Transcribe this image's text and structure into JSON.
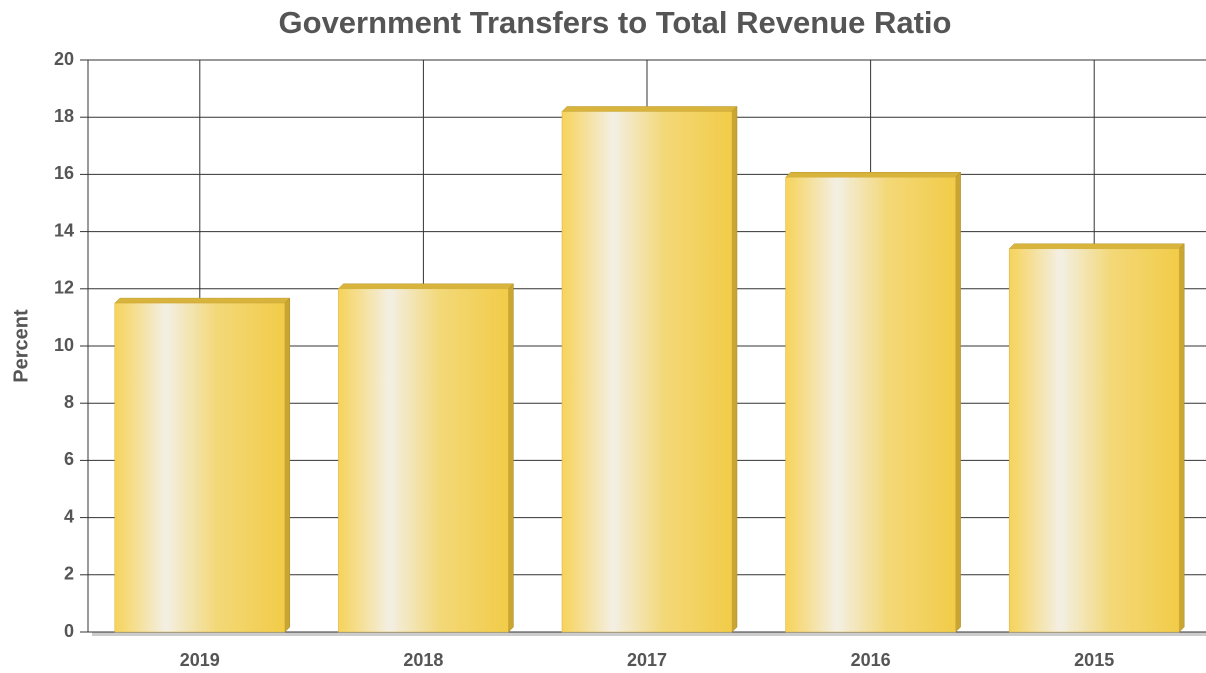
{
  "chart_data": {
    "type": "bar",
    "title": "Government Transfers to Total Revenue Ratio",
    "y_label": "Percent",
    "categories": [
      "2019",
      "2018",
      "2017",
      "2016",
      "2015"
    ],
    "values": [
      11.5,
      12.0,
      18.2,
      15.9,
      13.4
    ],
    "color": "#f5d050",
    "ylim": [
      0,
      20
    ],
    "yticks": [
      0,
      2,
      4,
      6,
      8,
      10,
      12,
      14,
      16,
      18,
      20
    ],
    "grid": true
  }
}
